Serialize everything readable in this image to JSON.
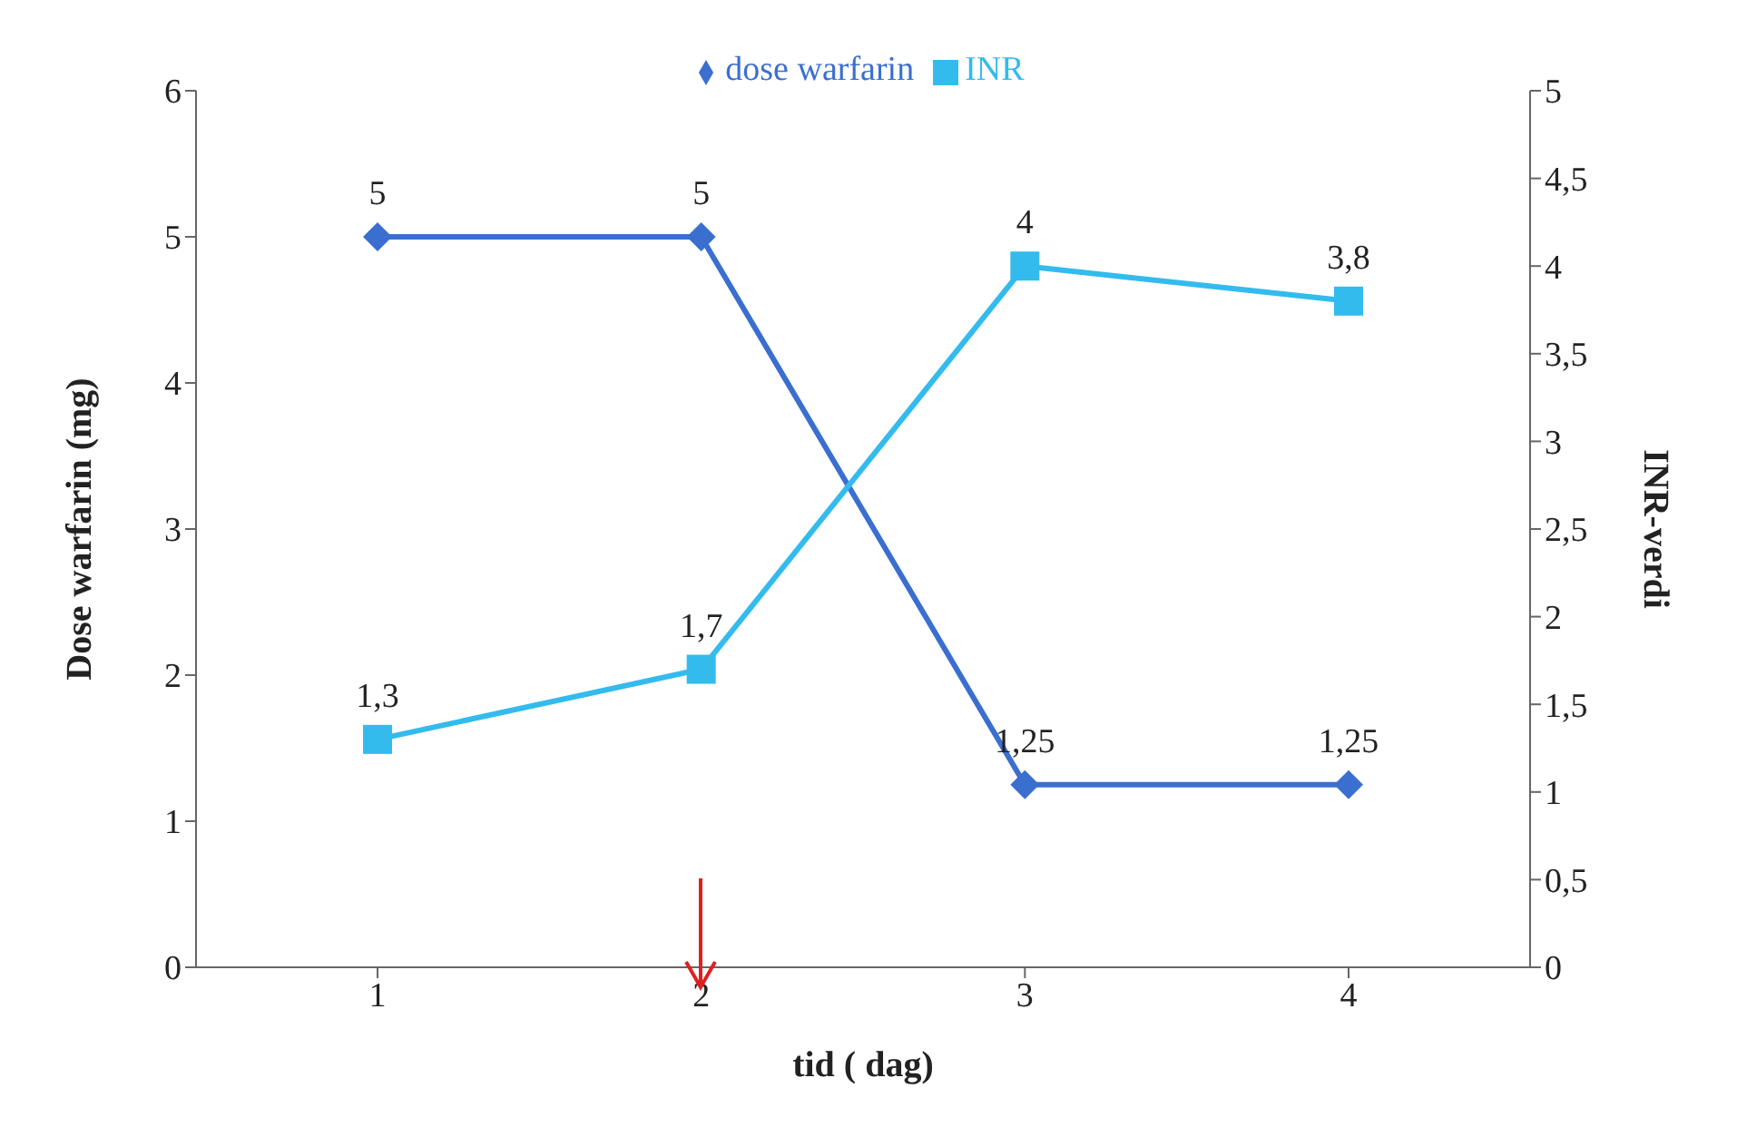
{
  "chart_data": {
    "type": "line",
    "xlabel": "tid ( dag)",
    "ylabel": "Dose warfarin (mg)",
    "y2label": "INR-verdi",
    "categories": [
      "1",
      "2",
      "3",
      "4"
    ],
    "series": [
      {
        "name": "dose warfarin",
        "color": "#3a6fd0",
        "values": [
          5,
          5,
          1.25,
          1.25
        ],
        "marker": "diamond",
        "value_labels": [
          "5",
          "5",
          "1,25",
          "1,25"
        ]
      },
      {
        "name": "INR",
        "color": "#33bbee",
        "values": [
          1.3,
          1.7,
          4,
          3.8
        ],
        "axis": "y2",
        "marker": "square",
        "value_labels": [
          "1,3",
          "1,7",
          "4",
          "3,8"
        ]
      }
    ],
    "ylim": [
      0,
      6
    ],
    "yticks": [
      0,
      1,
      2,
      3,
      4,
      5,
      6
    ],
    "y2lim": [
      0,
      5
    ],
    "y2ticks": [
      0,
      {
        "value": 0.5,
        "label": "0,5"
      },
      1,
      {
        "value": 1.5,
        "label": "1,5"
      },
      2,
      {
        "value": 2.5,
        "label": "2,5"
      },
      3,
      {
        "value": 3.5,
        "label": "3,5"
      },
      4,
      {
        "value": 4.5,
        "label": "4,5"
      },
      5
    ],
    "legend": "top",
    "grid": false
  }
}
